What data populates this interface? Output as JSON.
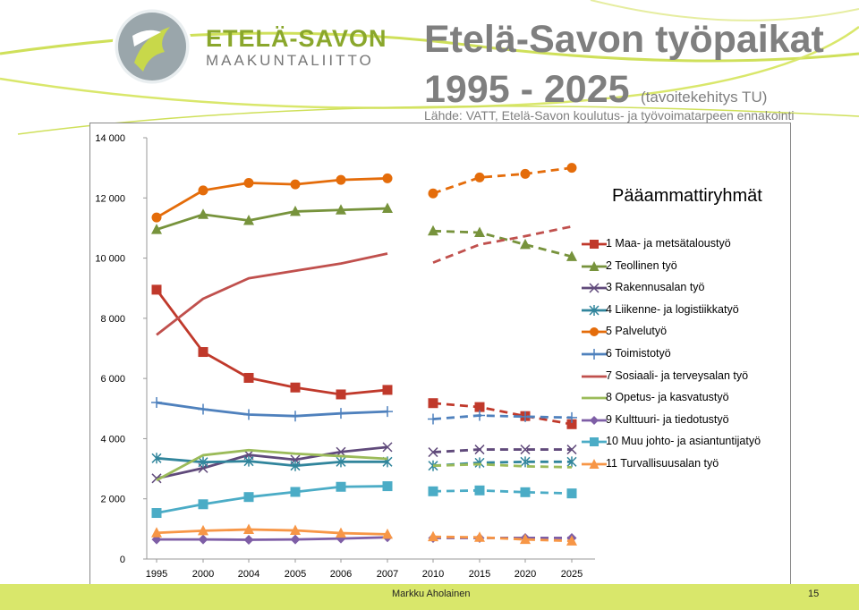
{
  "logo": {
    "line1": "ETELÄ-SAVON",
    "line2": "MAAKUNTALIITTO"
  },
  "title": {
    "line1": "Etelä-Savon työpaikat",
    "years": "1995 - 2025",
    "sub": "(tavoitekehitys TU)"
  },
  "source": "Lähde: VATT, Etelä-Savon koulutus- ja työvoimatarpeen ennakointi",
  "footer": {
    "author": "Markku Aholainen",
    "page": "15"
  },
  "chart_data": {
    "type": "line",
    "legend_title": "Pääammattiryhmät",
    "legend_position": "right",
    "grid": false,
    "categories": [
      "1995",
      "2000",
      "2004",
      "2005",
      "2006",
      "2007",
      "2010",
      "2015",
      "2020",
      "2025"
    ],
    "solid_segment": [
      "1995",
      "2007"
    ],
    "dashed_segment": [
      "2010",
      "2025"
    ],
    "ylim": [
      0,
      14000
    ],
    "yticks": [
      "0",
      "2 000",
      "4 000",
      "6 000",
      "8 000",
      "10 000",
      "12 000",
      "14 000"
    ],
    "series": [
      {
        "name": "1 Maa- ja metsätaloustyö",
        "color": "#c0392b",
        "marker": "square",
        "values": [
          8950,
          6880,
          6020,
          5700,
          5470,
          5620,
          5180,
          5050,
          4750,
          4480
        ]
      },
      {
        "name": "2 Teollinen työ",
        "color": "#77933c",
        "marker": "triangle",
        "values": [
          10950,
          11450,
          11250,
          11550,
          11600,
          11650,
          10900,
          10850,
          10450,
          10050
        ]
      },
      {
        "name": "3 Rakennusalan työ",
        "color": "#604a7b",
        "marker": "x",
        "values": [
          2680,
          3020,
          3460,
          3300,
          3560,
          3720,
          3550,
          3640,
          3640,
          3640
        ]
      },
      {
        "name": "4 Liikenne- ja logistiikkatyö",
        "color": "#31859c",
        "marker": "asterisk",
        "values": [
          3350,
          3220,
          3250,
          3100,
          3230,
          3230,
          3100,
          3200,
          3230,
          3230
        ]
      },
      {
        "name": "5 Palvelutyö",
        "color": "#e46c0a",
        "marker": "circle",
        "values": [
          11350,
          12250,
          12500,
          12450,
          12600,
          12650,
          12150,
          12680,
          12800,
          13000
        ]
      },
      {
        "name": "6 Toimistotyö",
        "color": "#4f81bd",
        "marker": "plus",
        "values": [
          5200,
          4980,
          4800,
          4750,
          4840,
          4900,
          4650,
          4770,
          4730,
          4700
        ]
      },
      {
        "name": "7 Sosiaali- ja terveysalan työ",
        "color": "#c0504d",
        "marker": "none",
        "values": [
          7450,
          8650,
          9330,
          9580,
          9820,
          10150,
          9850,
          10450,
          10730,
          11050
        ]
      },
      {
        "name": "8 Opetus- ja kasvatustyö",
        "color": "#9bbb59",
        "marker": "none",
        "values": [
          2620,
          3450,
          3620,
          3500,
          3420,
          3330,
          3100,
          3150,
          3080,
          3050
        ]
      },
      {
        "name": "9 Kulttuuri- ja tiedotustyö",
        "color": "#7e5ea6",
        "marker": "diamond",
        "values": [
          650,
          650,
          640,
          650,
          680,
          720,
          700,
          700,
          700,
          700
        ]
      },
      {
        "name": "10 Muu johto- ja asiantuntijatyö",
        "color": "#4bacc6",
        "marker": "square",
        "values": [
          1530,
          1820,
          2060,
          2230,
          2400,
          2420,
          2250,
          2280,
          2220,
          2180
        ]
      },
      {
        "name": "11 Turvallisuusalan työ",
        "color": "#f79646",
        "marker": "triangle",
        "values": [
          870,
          940,
          980,
          950,
          860,
          820,
          740,
          720,
          650,
          600
        ]
      }
    ]
  }
}
